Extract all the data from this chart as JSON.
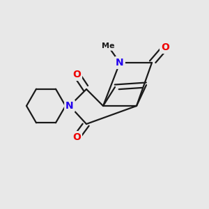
{
  "bg_color": "#e8e8e8",
  "bond_color": "#1a1a1a",
  "bond_width": 1.6,
  "atom_colors": {
    "N": "#2200ee",
    "O": "#ee0000",
    "C": "#1a1a1a"
  },
  "figsize": [
    3.0,
    3.0
  ],
  "dpi": 100
}
